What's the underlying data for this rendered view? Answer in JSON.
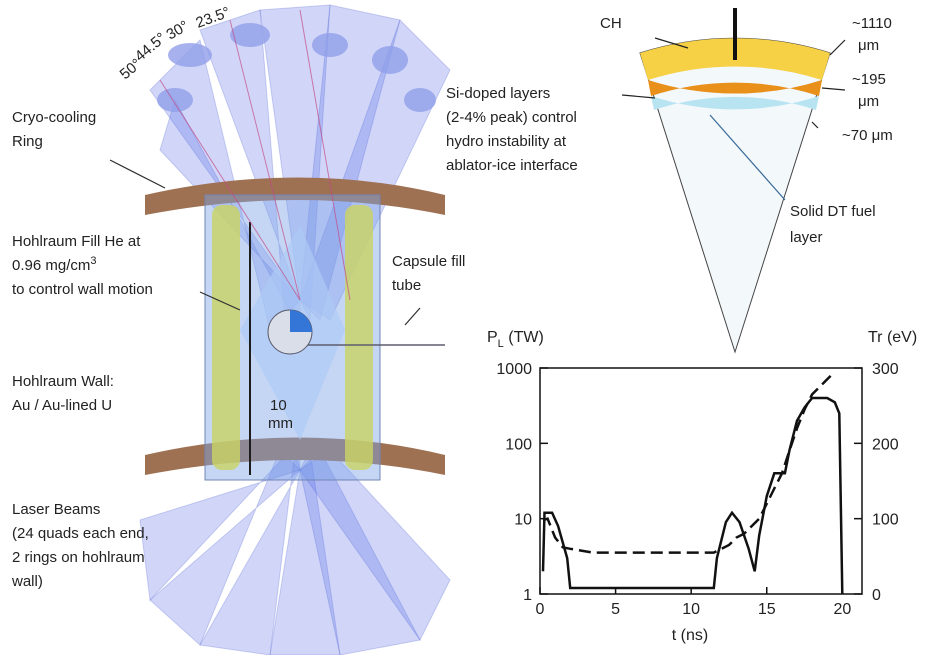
{
  "diagram": {
    "angles": [
      "50°",
      "44.5°",
      "30°",
      "23.5°"
    ],
    "cryo": [
      "Cryo-cooling",
      "Ring"
    ],
    "fill_he": [
      "Hohlraum Fill He at",
      "0.96 mg/cm",
      "3",
      "to control wall motion"
    ],
    "wall": [
      "Hohlraum Wall:",
      "Au / Au-lined U"
    ],
    "length": [
      "10",
      "mm"
    ],
    "fill_tube": [
      "Capsule fill",
      "tube"
    ],
    "beams": [
      "Laser Beams",
      "(24 quads each end,",
      "2 rings on hohlraum",
      "wall)"
    ],
    "capsule": {
      "ch": "CH",
      "outer": [
        "~1110",
        "μm"
      ],
      "mid": [
        "~195",
        "μm"
      ],
      "inner": "~70 μm",
      "si": [
        "Si-doped layers",
        "(2-4% peak) control",
        "hydro instability at",
        "ablator-ice interface"
      ],
      "dt": [
        "Solid DT fuel",
        "layer"
      ]
    }
  },
  "chart_data": {
    "type": "line",
    "ylabel": [
      "P",
      "L",
      " (TW)"
    ],
    "y2label": "Tr (eV)",
    "xlabel": "t (ns)",
    "xlim": [
      0,
      21.3
    ],
    "xticks": [
      0,
      5,
      10,
      15,
      20
    ],
    "ylim": [
      1,
      1000
    ],
    "yticks": [
      1,
      10,
      100,
      1000
    ],
    "ylog": true,
    "y2lim": [
      0,
      300
    ],
    "y2ticks": [
      0,
      100,
      200,
      300
    ],
    "series": [
      {
        "color": "#111",
        "line_style": "solid",
        "x": [
          0.2,
          0.3,
          0.8,
          1.2,
          1.8,
          2,
          11.5,
          11.7,
          12.3,
          12.7,
          13.2,
          13.8,
          14.2,
          14.5,
          15,
          15.5,
          16.2,
          16.5,
          17,
          17.5,
          18,
          19,
          19.5,
          19.8,
          20
        ],
        "values": [
          2,
          12,
          12,
          8,
          3,
          1.2,
          1.2,
          3,
          9,
          12,
          9,
          4,
          2,
          6,
          20,
          40,
          40,
          80,
          200,
          300,
          400,
          400,
          350,
          250,
          1
        ]
      },
      {
        "color": "#111",
        "line_style": "dashed",
        "axis": "y2",
        "x": [
          0.2,
          0.5,
          1,
          1.5,
          2,
          3.5,
          11.5,
          12.5,
          13,
          13.5,
          14,
          14.5,
          15,
          15.5,
          16,
          16.5,
          17,
          17.5,
          18,
          19,
          19.5
        ],
        "values": [
          98,
          100,
          75,
          62,
          60,
          55,
          55,
          65,
          75,
          80,
          90,
          100,
          120,
          140,
          160,
          190,
          220,
          245,
          265,
          285,
          295
        ]
      }
    ]
  }
}
